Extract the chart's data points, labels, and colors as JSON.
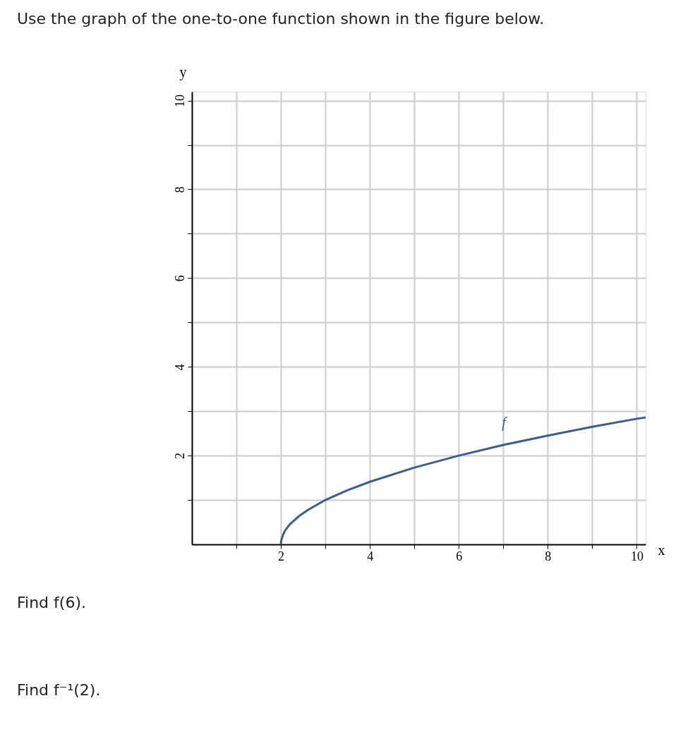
{
  "chart_data": {
    "type": "line",
    "title": "Use the graph of the one-to-one function shown in the figure below.",
    "xlabel": "x",
    "ylabel": "y",
    "x": [
      2,
      2.01,
      2.05,
      2.1,
      2.2,
      2.4,
      2.6,
      3,
      3.5,
      4,
      5,
      6,
      7,
      8,
      9,
      10,
      10.2
    ],
    "series": [
      {
        "color": "#3b5e91",
        "values": [
          0,
          0.1,
          0.22,
          0.32,
          0.45,
          0.63,
          0.77,
          1,
          1.22,
          1.41,
          1.73,
          2,
          2.24,
          2.45,
          2.65,
          2.83,
          2.86
        ]
      }
    ],
    "xlim": [
      0,
      10.2
    ],
    "ylim": [
      0,
      10.2
    ],
    "xticks": [
      {
        "value": 1,
        "label": null
      },
      2,
      {
        "value": 3,
        "label": null
      },
      4,
      {
        "value": 5,
        "label": null
      },
      6,
      {
        "value": 7,
        "label": null
      },
      8,
      {
        "value": 9,
        "label": null
      },
      10
    ],
    "yticks": [
      {
        "value": 1,
        "label": null
      },
      2,
      {
        "value": 3,
        "label": null
      },
      4,
      {
        "value": 5,
        "label": null
      },
      6,
      {
        "value": 7,
        "label": null
      },
      8,
      {
        "value": 9,
        "label": null
      },
      10
    ],
    "grid": true,
    "marker": "none",
    "line_style": "solid",
    "annotations": [
      "f",
      "Find f(6).",
      "Find f⁻¹(2)."
    ]
  }
}
